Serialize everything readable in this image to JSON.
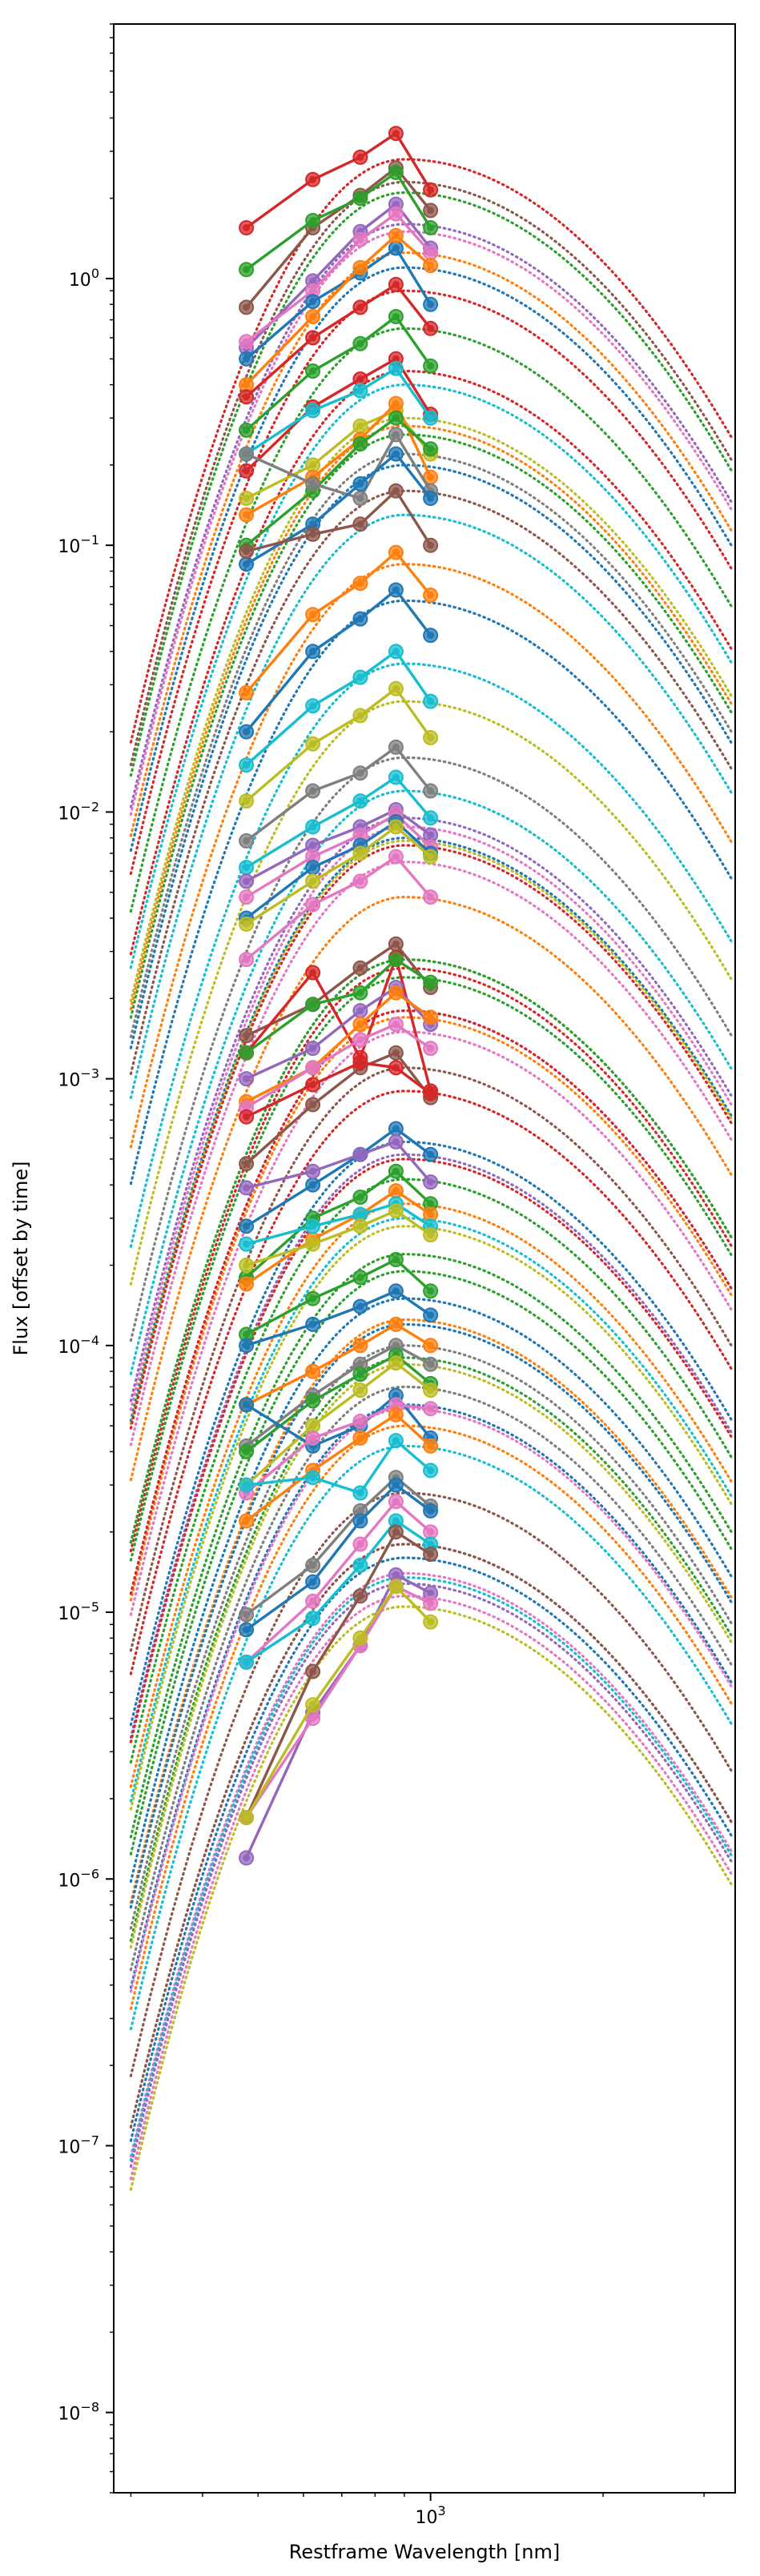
{
  "chart_data": {
    "type": "line",
    "title": "",
    "xlabel": "Restframe Wavelength [nm]",
    "ylabel": "Flux [offset by time]",
    "xscale": "log",
    "yscale": "log",
    "xlim": [
      280,
      3400
    ],
    "ylim": [
      5e-09,
      9.0
    ],
    "grid": false,
    "legend": "none",
    "x_ticks": [
      {
        "value": 1000,
        "base": "10",
        "exp": "3"
      }
    ],
    "y_ticks": [
      {
        "value": 1e-08,
        "base": "10",
        "exp": "−8"
      },
      {
        "value": 1e-07,
        "base": "10",
        "exp": "−7"
      },
      {
        "value": 1e-06,
        "base": "10",
        "exp": "−6"
      },
      {
        "value": 1e-05,
        "base": "10",
        "exp": "−5"
      },
      {
        "value": 0.0001,
        "base": "10",
        "exp": "−4"
      },
      {
        "value": 0.001,
        "base": "10",
        "exp": "−3"
      },
      {
        "value": 0.01,
        "base": "10",
        "exp": "−2"
      },
      {
        "value": 0.1,
        "base": "10",
        "exp": "−1"
      },
      {
        "value": 1,
        "base": "10",
        "exp": "0"
      }
    ],
    "palette": [
      "#d62728",
      "#2ca02c",
      "#ff7f0e",
      "#1f77b4",
      "#9467bd",
      "#8c564b",
      "#e377c2",
      "#7f7f7f",
      "#bcbd22",
      "#17becf"
    ],
    "filter_wavelengths": [
      477,
      623,
      754,
      870,
      1000
    ],
    "series": [
      {
        "color": "#d62728",
        "model_peak_x": 900,
        "model_peak_y": 2.8,
        "points": [
          1.55,
          2.35,
          2.85,
          3.5,
          2.15
        ]
      },
      {
        "color": "#8c564b",
        "model_peak_x": 900,
        "model_peak_y": 2.3,
        "points": [
          0.78,
          1.55,
          2.05,
          2.6,
          1.8
        ]
      },
      {
        "color": "#2ca02c",
        "model_peak_x": 900,
        "model_peak_y": 2.1,
        "points": [
          1.08,
          1.65,
          2.0,
          2.5,
          1.55
        ]
      },
      {
        "color": "#9467bd",
        "model_peak_x": 900,
        "model_peak_y": 1.6,
        "points": [
          0.55,
          0.98,
          1.5,
          1.9,
          1.3
        ]
      },
      {
        "color": "#e377c2",
        "model_peak_x": 900,
        "model_peak_y": 1.5,
        "points": [
          0.58,
          0.9,
          1.4,
          1.75,
          1.25
        ]
      },
      {
        "color": "#1f77b4",
        "model_peak_x": 900,
        "model_peak_y": 1.1,
        "points": [
          0.5,
          0.82,
          1.05,
          1.3,
          0.8
        ]
      },
      {
        "color": "#ff7f0e",
        "model_peak_x": 900,
        "model_peak_y": 1.25,
        "points": [
          0.4,
          0.72,
          1.1,
          1.45,
          1.12
        ]
      },
      {
        "color": "#d62728",
        "model_peak_x": 900,
        "model_peak_y": 0.9,
        "points": [
          0.36,
          0.6,
          0.78,
          0.95,
          0.65
        ]
      },
      {
        "color": "#2ca02c",
        "model_peak_x": 900,
        "model_peak_y": 0.65,
        "points": [
          0.27,
          0.45,
          0.57,
          0.72,
          0.47
        ]
      },
      {
        "color": "#d62728",
        "model_peak_x": 900,
        "model_peak_y": 0.45,
        "points": [
          0.19,
          0.33,
          0.42,
          0.5,
          0.31
        ]
      },
      {
        "color": "#17becf",
        "model_peak_x": 900,
        "model_peak_y": 0.4,
        "points": [
          0.22,
          0.32,
          0.38,
          0.46,
          0.3
        ]
      },
      {
        "color": "#bcbd22",
        "model_peak_x": 900,
        "model_peak_y": 0.3,
        "points": [
          0.15,
          0.2,
          0.28,
          0.32,
          0.22
        ]
      },
      {
        "color": "#ff7f0e",
        "model_peak_x": 900,
        "model_peak_y": 0.28,
        "points": [
          0.13,
          0.18,
          0.25,
          0.34,
          0.18
        ]
      },
      {
        "color": "#2ca02c",
        "model_peak_x": 900,
        "model_peak_y": 0.26,
        "points": [
          0.1,
          0.16,
          0.24,
          0.3,
          0.23
        ]
      },
      {
        "color": "#7f7f7f",
        "model_peak_x": 900,
        "model_peak_y": 0.22,
        "points": [
          0.22,
          0.17,
          0.15,
          0.26,
          0.16
        ]
      },
      {
        "color": "#1f77b4",
        "model_peak_x": 900,
        "model_peak_y": 0.2,
        "points": [
          0.085,
          0.12,
          0.17,
          0.22,
          0.15
        ]
      },
      {
        "color": "#8c564b",
        "model_peak_x": 900,
        "model_peak_y": 0.16,
        "points": [
          0.095,
          0.11,
          0.12,
          0.16,
          0.1
        ]
      },
      {
        "color": "#ff7f0e",
        "model_peak_x": 900,
        "model_peak_y": 0.085,
        "points": [
          0.028,
          0.055,
          0.072,
          0.094,
          0.065
        ]
      },
      {
        "color": "#1f77b4",
        "model_peak_x": 900,
        "model_peak_y": 0.062,
        "points": [
          0.02,
          0.04,
          0.053,
          0.068,
          0.046
        ]
      },
      {
        "color": "#17becf",
        "model_peak_x": 900,
        "model_peak_y": 0.036,
        "points": [
          0.015,
          0.025,
          0.032,
          0.04,
          0.026
        ]
      },
      {
        "color": "#bcbd22",
        "model_peak_x": 900,
        "model_peak_y": 0.026,
        "points": [
          0.011,
          0.018,
          0.023,
          0.029,
          0.019
        ]
      },
      {
        "color": "#7f7f7f",
        "model_peak_x": 900,
        "model_peak_y": 0.016,
        "points": [
          0.0078,
          0.012,
          0.014,
          0.0175,
          0.012
        ]
      },
      {
        "color": "#17becf",
        "model_peak_x": 900,
        "model_peak_y": 0.012,
        "points": [
          0.0062,
          0.0088,
          0.011,
          0.0135,
          0.0095
        ]
      },
      {
        "color": "#9467bd",
        "model_peak_x": 900,
        "model_peak_y": 0.0095,
        "points": [
          0.0055,
          0.0075,
          0.0088,
          0.0102,
          0.0082
        ]
      },
      {
        "color": "#e377c2",
        "model_peak_x": 900,
        "model_peak_y": 0.0088,
        "points": [
          0.0048,
          0.0068,
          0.0082,
          0.0098,
          0.0074
        ]
      },
      {
        "color": "#1f77b4",
        "model_peak_x": 900,
        "model_peak_y": 0.008,
        "points": [
          0.004,
          0.0062,
          0.0075,
          0.0092,
          0.007
        ]
      },
      {
        "color": "#bcbd22",
        "model_peak_x": 900,
        "model_peak_y": 0.0078,
        "points": [
          0.0038,
          0.0055,
          0.007,
          0.0088,
          0.0068
        ]
      },
      {
        "color": "#e377c2",
        "model_peak_x": 900,
        "model_peak_y": 0.0065,
        "points": [
          0.0028,
          0.0045,
          0.0055,
          0.0068,
          0.0048
        ]
      },
      {
        "color": "#8c564b",
        "model_peak_x": 900,
        "model_peak_y": 0.0028,
        "points": [
          0.00145,
          0.0019,
          0.0026,
          0.0032,
          0.0022
        ]
      },
      {
        "color": "#d62728",
        "model_peak_x": 900,
        "model_peak_y": 0.0026,
        "points": [
          0.00125,
          0.0025,
          0.0012,
          0.00285,
          0.0009
        ]
      },
      {
        "color": "#2ca02c",
        "model_peak_x": 900,
        "model_peak_y": 0.0024,
        "points": [
          0.00125,
          0.0019,
          0.0021,
          0.0028,
          0.0023
        ]
      },
      {
        "color": "#9467bd",
        "model_peak_x": 900,
        "model_peak_y": 0.0018,
        "points": [
          0.001,
          0.0013,
          0.0018,
          0.0022,
          0.0016
        ]
      },
      {
        "color": "#ff7f0e",
        "model_peak_x": 900,
        "model_peak_y": 0.0017,
        "points": [
          0.00082,
          0.0011,
          0.0016,
          0.0021,
          0.0017
        ]
      },
      {
        "color": "#e377c2",
        "model_peak_x": 900,
        "model_peak_y": 0.0015,
        "points": [
          0.00078,
          0.0011,
          0.0014,
          0.0016,
          0.0013
        ]
      },
      {
        "color": "#8c564b",
        "model_peak_x": 900,
        "model_peak_y": 0.0011,
        "points": [
          0.00048,
          0.0008,
          0.0011,
          0.00125,
          0.00085
        ]
      },
      {
        "color": "#d62728",
        "model_peak_x": 900,
        "model_peak_y": 0.0009,
        "points": [
          0.00072,
          0.00095,
          0.00115,
          0.0011,
          0.00088
        ]
      },
      {
        "color": "#1f77b4",
        "model_peak_x": 900,
        "model_peak_y": 0.00058,
        "points": [
          0.00028,
          0.0004,
          0.00052,
          0.00065,
          0.00052
        ]
      },
      {
        "color": "#9467bd",
        "model_peak_x": 900,
        "model_peak_y": 0.00052,
        "points": [
          0.00039,
          0.00045,
          0.00052,
          0.00058,
          0.00041
        ]
      },
      {
        "color": "#2ca02c",
        "model_peak_x": 900,
        "model_peak_y": 0.00042,
        "points": [
          0.00018,
          0.0003,
          0.00036,
          0.00045,
          0.00034
        ]
      },
      {
        "color": "#ff7f0e",
        "model_peak_x": 900,
        "model_peak_y": 0.00034,
        "points": [
          0.00017,
          0.00025,
          0.00031,
          0.00038,
          0.00031
        ]
      },
      {
        "color": "#17becf",
        "model_peak_x": 900,
        "model_peak_y": 0.0003,
        "points": [
          0.00024,
          0.00028,
          0.00031,
          0.00034,
          0.00028
        ]
      },
      {
        "color": "#bcbd22",
        "model_peak_x": 900,
        "model_peak_y": 0.00028,
        "points": [
          0.0002,
          0.00024,
          0.00028,
          0.00032,
          0.00026
        ]
      },
      {
        "color": "#2ca02c",
        "model_peak_x": 900,
        "model_peak_y": 0.00019,
        "points": [
          0.00011,
          0.00015,
          0.00018,
          0.00021,
          0.00016
        ]
      },
      {
        "color": "#1f77b4",
        "model_peak_x": 900,
        "model_peak_y": 0.00015,
        "points": [
          0.0001,
          0.00012,
          0.00014,
          0.00016,
          0.00013
        ]
      },
      {
        "color": "#ff7f0e",
        "model_peak_x": 900,
        "model_peak_y": 0.000125,
        "points": [
          6e-05,
          8e-05,
          0.0001,
          0.00012,
          0.0001
        ]
      },
      {
        "color": "#7f7f7f",
        "model_peak_x": 900,
        "model_peak_y": 0.0001,
        "points": [
          4.2e-05,
          6.5e-05,
          8.5e-05,
          0.0001,
          8.5e-05
        ]
      },
      {
        "color": "#2ca02c",
        "model_peak_x": 900,
        "model_peak_y": 9e-05,
        "points": [
          4e-05,
          6.2e-05,
          7.8e-05,
          9.2e-05,
          7.2e-05
        ]
      },
      {
        "color": "#bcbd22",
        "model_peak_x": 900,
        "model_peak_y": 8.5e-05,
        "points": [
          3e-05,
          5e-05,
          6.8e-05,
          8.6e-05,
          6.8e-05
        ]
      },
      {
        "color": "#1f77b4",
        "model_peak_x": 900,
        "model_peak_y": 6e-05,
        "points": [
          6e-05,
          4.2e-05,
          5e-05,
          6.5e-05,
          4.5e-05
        ]
      },
      {
        "color": "#e377c2",
        "model_peak_x": 900,
        "model_peak_y": 5.8e-05,
        "points": [
          2.8e-05,
          4.5e-05,
          5.2e-05,
          6e-05,
          5.8e-05
        ]
      },
      {
        "color": "#ff7f0e",
        "model_peak_x": 900,
        "model_peak_y": 5e-05,
        "points": [
          2.2e-05,
          3.4e-05,
          4.5e-05,
          5.5e-05,
          4.2e-05
        ]
      },
      {
        "color": "#17becf",
        "model_peak_x": 900,
        "model_peak_y": 4.2e-05,
        "points": [
          3e-05,
          3.2e-05,
          2.8e-05,
          4.4e-05,
          3.4e-05
        ]
      },
      {
        "color": "#7f7f7f",
        "model_peak_x": 900,
        "model_peak_y": 1.8e-05,
        "points": [
          9.8e-06,
          1.5e-05,
          2.4e-05,
          3.2e-05,
          2.5e-05
        ]
      },
      {
        "color": "#1f77b4",
        "model_peak_x": 900,
        "model_peak_y": 1.6e-05,
        "points": [
          8.6e-06,
          1.3e-05,
          2.2e-05,
          3e-05,
          2.4e-05
        ]
      },
      {
        "color": "#e377c2",
        "model_peak_x": 900,
        "model_peak_y": 1.4e-05,
        "points": [
          6.5e-06,
          1.1e-05,
          1.8e-05,
          2.6e-05,
          2e-05
        ]
      },
      {
        "color": "#17becf",
        "model_peak_x": 900,
        "model_peak_y": 1.35e-05,
        "points": [
          6.5e-06,
          9.5e-06,
          1.5e-05,
          2.2e-05,
          1.8e-05
        ]
      },
      {
        "color": "#8c564b",
        "model_peak_x": 900,
        "model_peak_y": 1.8e-05,
        "points": [
          1.7e-06,
          6e-06,
          1.15e-05,
          2e-05,
          1.65e-05
        ]
      },
      {
        "color": "#9467bd",
        "model_peak_x": 900,
        "model_peak_y": 1.28e-05,
        "points": [
          1.2e-06,
          4.2e-06,
          7.5e-06,
          1.38e-05,
          1.18e-05
        ]
      },
      {
        "color": "#e377c2",
        "model_peak_x": 900,
        "model_peak_y": 1.15e-05,
        "points": [
          1.7e-06,
          4e-06,
          7.5e-06,
          1.25e-05,
          1.08e-05
        ]
      },
      {
        "color": "#bcbd22",
        "model_peak_x": 900,
        "model_peak_y": 1.05e-05,
        "points": [
          1.7e-06,
          4.5e-06,
          8e-06,
          1.25e-05,
          9.2e-06
        ]
      },
      {
        "color": "#d62728",
        "model_peak_x": 900,
        "model_peak_y": 0.0075,
        "points": []
      },
      {
        "color": "#2ca02c",
        "model_peak_x": 900,
        "model_peak_y": 0.0028,
        "points": []
      },
      {
        "color": "#ff7f0e",
        "model_peak_x": 900,
        "model_peak_y": 0.0048,
        "points": []
      },
      {
        "color": "#d62728",
        "model_peak_x": 900,
        "model_peak_y": 0.0005,
        "points": []
      },
      {
        "color": "#2ca02c",
        "model_peak_x": 900,
        "model_peak_y": 0.00022,
        "points": []
      },
      {
        "color": "#7f7f7f",
        "model_peak_x": 900,
        "model_peak_y": 7e-05,
        "points": []
      },
      {
        "color": "#8c564b",
        "model_peak_x": 900,
        "model_peak_y": 2.8e-05,
        "points": []
      },
      {
        "color": "#1f77b4",
        "model_peak_x": 900,
        "model_peak_y": 0.00012,
        "points": []
      },
      {
        "color": "#d62728",
        "model_peak_x": 900,
        "model_peak_y": 0.0018,
        "points": []
      },
      {
        "color": "#17becf",
        "model_peak_x": 900,
        "model_peak_y": 0.13,
        "points": []
      }
    ]
  }
}
